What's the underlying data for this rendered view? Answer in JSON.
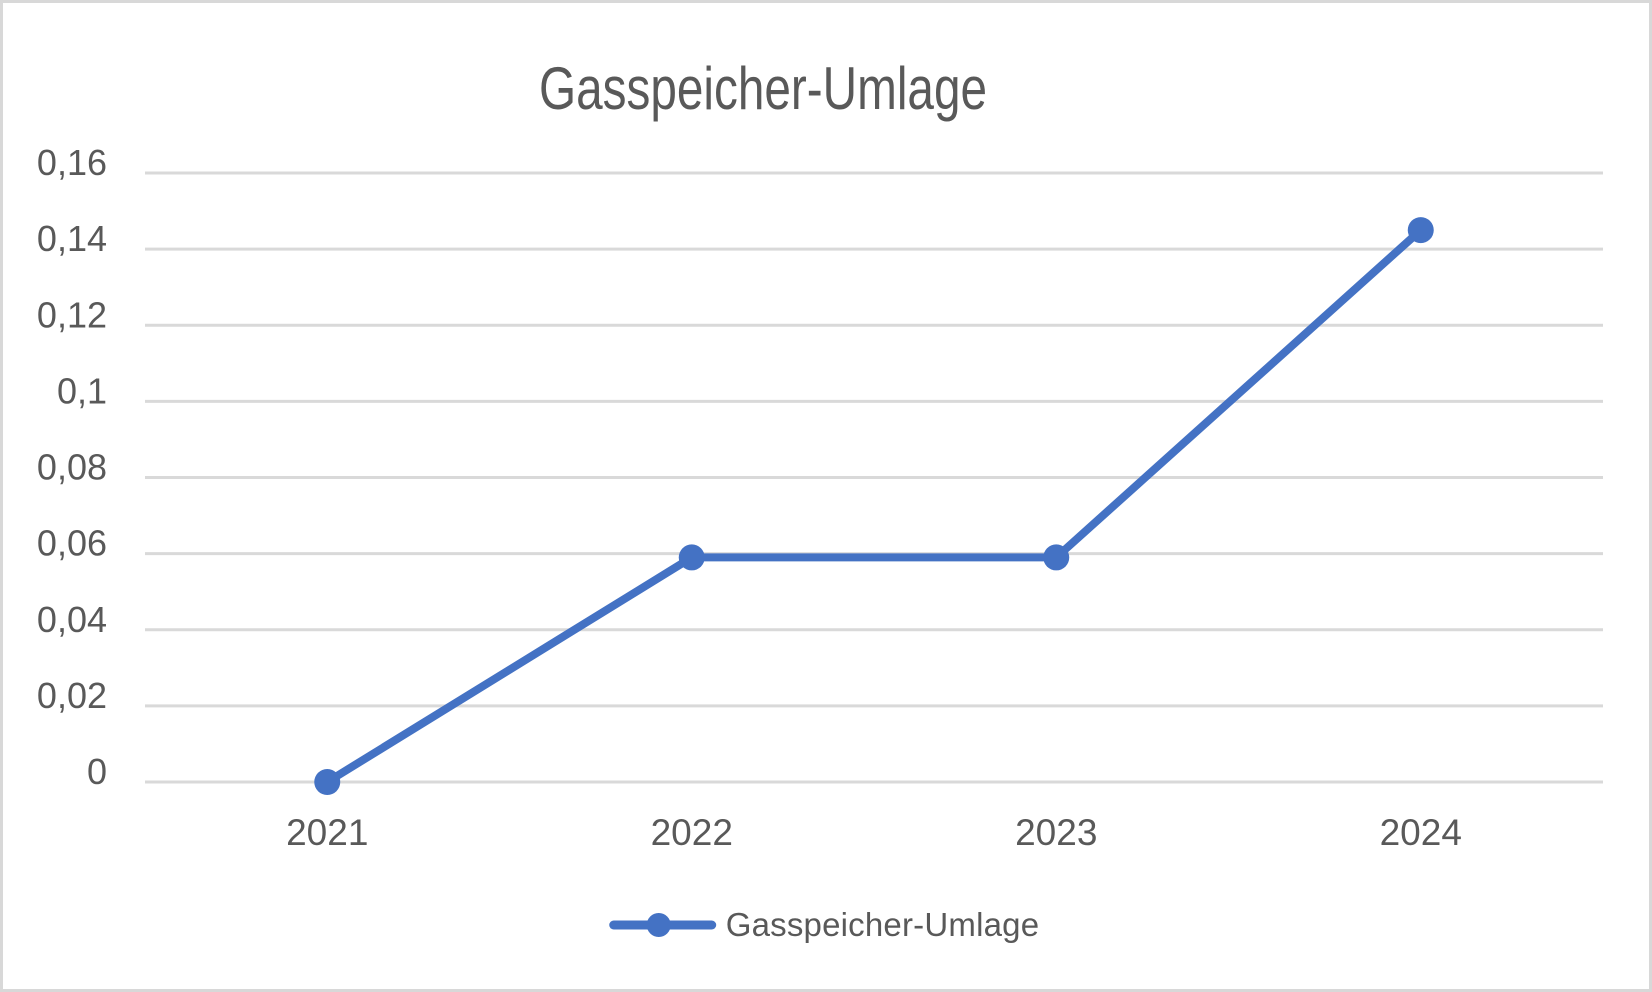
{
  "chart_data": {
    "type": "line",
    "title": "Gasspeicher-Umlage",
    "categories": [
      "2021",
      "2022",
      "2023",
      "2024"
    ],
    "series": [
      {
        "name": "Gasspeicher-Umlage",
        "values": [
          0,
          0.059,
          0.059,
          0.145
        ]
      }
    ],
    "xlabel": "",
    "ylabel": "",
    "ylim": [
      0,
      0.16
    ],
    "yticks": [
      {
        "value": 0,
        "label": "0"
      },
      {
        "value": 0.02,
        "label": "0,02"
      },
      {
        "value": 0.04,
        "label": "0,04"
      },
      {
        "value": 0.06,
        "label": "0,06"
      },
      {
        "value": 0.08,
        "label": "0,08"
      },
      {
        "value": 0.1,
        "label": "0,1"
      },
      {
        "value": 0.12,
        "label": "0,12"
      },
      {
        "value": 0.14,
        "label": "0,14"
      },
      {
        "value": 0.16,
        "label": "0,16"
      }
    ],
    "grid": "horizontal",
    "legend_position": "bottom",
    "decimal_separator": ","
  },
  "legend": {
    "items": [
      {
        "label": "Gasspeicher-Umlage",
        "marker": "line-with-dot"
      }
    ]
  },
  "colors": {
    "series": "#4472C4",
    "gridline": "#D9D9D9",
    "text": "#595959",
    "background": "#FFFFFF",
    "frame_border": "#D8D8D8"
  }
}
